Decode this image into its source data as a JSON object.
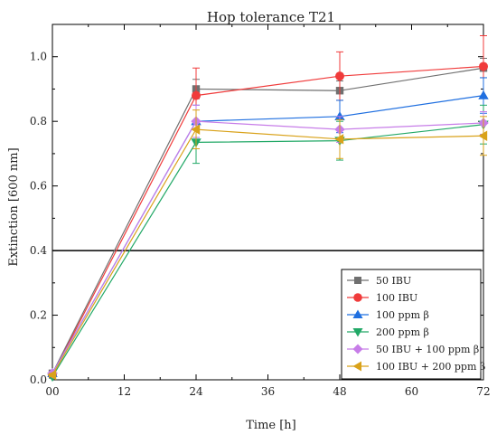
{
  "chart_data": {
    "type": "line",
    "title": "Hop tolerance T21",
    "xlabel": "Time [h]",
    "ylabel": "Extinction [600 nm]",
    "xlim": [
      0,
      72
    ],
    "ylim": [
      0,
      1.1
    ],
    "xticks": [
      0,
      12,
      24,
      36,
      48,
      60,
      72
    ],
    "xtick_labels": [
      "00",
      "12",
      "24",
      "36",
      "48",
      "60",
      "72"
    ],
    "yticks": [
      0.0,
      0.2,
      0.4,
      0.6,
      0.8,
      1.0
    ],
    "ytick_labels": [
      "0.0",
      "0.2",
      "0.4",
      "0.6",
      "0.8",
      "1.0"
    ],
    "reference_line": 0.4,
    "grid": false,
    "legend_position": "bottom-right",
    "x": [
      0,
      24,
      48,
      72
    ],
    "series": [
      {
        "name": "50 IBU",
        "color": "#707070",
        "marker": "square",
        "values": [
          0.02,
          0.9,
          0.895,
          0.965
        ],
        "errors": [
          0.005,
          0.03,
          0.03,
          0.03
        ]
      },
      {
        "name": "100 IBU",
        "color": "#f03b3b",
        "marker": "circle",
        "values": [
          0.015,
          0.88,
          0.94,
          0.97
        ],
        "errors": [
          0.005,
          0.085,
          0.075,
          0.095
        ]
      },
      {
        "name": "100 ppm β",
        "color": "#1f6fe0",
        "marker": "triangle-up",
        "values": [
          0.02,
          0.8,
          0.815,
          0.88
        ],
        "errors": [
          0.005,
          0.05,
          0.05,
          0.055
        ]
      },
      {
        "name": "200 ppm β",
        "color": "#21a866",
        "marker": "triangle-down",
        "values": [
          0.01,
          0.735,
          0.74,
          0.79
        ],
        "errors": [
          0.005,
          0.065,
          0.06,
          0.06
        ]
      },
      {
        "name": "50 IBU + 100 ppm β",
        "color": "#c77de8",
        "marker": "diamond",
        "values": [
          0.02,
          0.8,
          0.775,
          0.795
        ],
        "errors": [
          0.005,
          0.05,
          0.04,
          0.035
        ]
      },
      {
        "name": "100 IBU + 200 ppm β",
        "color": "#d9a21a",
        "marker": "triangle-left",
        "values": [
          0.015,
          0.775,
          0.745,
          0.755
        ],
        "errors": [
          0.005,
          0.06,
          0.06,
          0.06
        ]
      }
    ]
  }
}
